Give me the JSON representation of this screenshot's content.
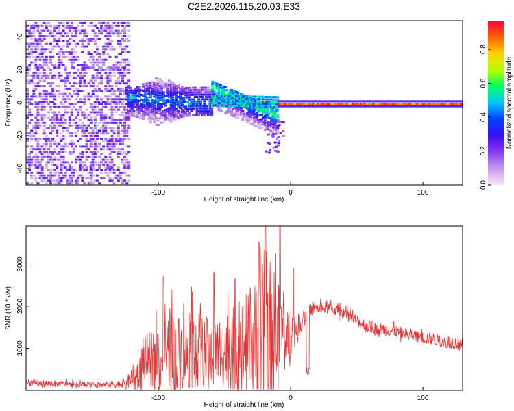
{
  "title": "C2E2.2026.115.20.03.E33",
  "chart_data": [
    {
      "type": "heatmap",
      "xlabel": "Height of straight line (km)",
      "ylabel": "Frequency (Hz)",
      "xlim": [
        -200,
        130
      ],
      "ylim": [
        -50,
        50
      ],
      "xticks": [
        -100,
        0,
        100
      ],
      "xtick_labels": [
        "-100",
        "0",
        "100"
      ],
      "yticks": [
        -40,
        -20,
        0,
        20,
        40
      ],
      "ytick_labels": [
        "-40",
        "-20",
        "0",
        "20",
        "40"
      ],
      "colorbar": {
        "label": "Normalized spectral amplitude",
        "range": [
          0,
          0.97
        ],
        "ticks": [
          0,
          0.2,
          0.4,
          0.6,
          0.8
        ],
        "tick_labels": [
          "0.0",
          "0.2",
          "0.4",
          "0.6",
          "0.8"
        ],
        "colormap": [
          "#f5e8fb",
          "#c39be8",
          "#8a3bf0",
          "#3a10f0",
          "#0040ff",
          "#00c8ff",
          "#00ff60",
          "#b8ff00",
          "#ffd000",
          "#ff6000",
          "#ff0040"
        ]
      },
      "description_regions": [
        {
          "name": "diffuse noise",
          "x_range": [
            -200,
            -125
          ],
          "freq_range": [
            -50,
            50
          ],
          "amplitude": 0.1
        },
        {
          "name": "broad band",
          "x_range": [
            -125,
            -60
          ],
          "freq_range": [
            -20,
            20
          ],
          "amplitude": 0.25
        },
        {
          "name": "decaying branch",
          "x_range": [
            -60,
            -10
          ],
          "freq_range": [
            -35,
            12
          ],
          "amplitude": 0.4
        },
        {
          "name": "narrow line at 0 Hz",
          "x_range": [
            -10,
            130
          ],
          "freq_range": [
            -3,
            3
          ],
          "amplitude": 0.97
        }
      ]
    },
    {
      "type": "line",
      "xlabel": "Height of straight line (km)",
      "ylabel": "SNR (10 * v/v)",
      "xlim": [
        -200,
        130
      ],
      "ylim": [
        0,
        3900
      ],
      "xticks": [
        -100,
        0,
        100
      ],
      "xtick_labels": [
        "-100",
        "0",
        "100"
      ],
      "yticks": [
        1000,
        2000,
        3000
      ],
      "ytick_labels": [
        "1000",
        "2000",
        "3000"
      ],
      "color": "#ee3333",
      "envelope": {
        "x": [
          -200,
          -180,
          -160,
          -140,
          -125,
          -120,
          -115,
          -110,
          -100,
          -90,
          -80,
          -70,
          -60,
          -50,
          -45,
          -40,
          -30,
          -25,
          -20,
          -15,
          -10,
          -5,
          0,
          5,
          10,
          15,
          20,
          30,
          40,
          50,
          60,
          70,
          80,
          90,
          100,
          110,
          120,
          130
        ],
        "base": [
          180,
          160,
          150,
          140,
          150,
          250,
          500,
          700,
          800,
          850,
          900,
          950,
          900,
          950,
          1000,
          1000,
          1100,
          1150,
          1200,
          1250,
          1300,
          1350,
          1400,
          1500,
          1750,
          1900,
          1950,
          1950,
          1850,
          1650,
          1500,
          1450,
          1400,
          1300,
          1250,
          1200,
          1150,
          1100
        ],
        "amp": [
          80,
          80,
          70,
          70,
          120,
          300,
          450,
          600,
          800,
          1000,
          900,
          900,
          800,
          900,
          1000,
          1100,
          1300,
          1600,
          2200,
          1800,
          1400,
          1000,
          600,
          300,
          200,
          150,
          150,
          150,
          150,
          150,
          150,
          150,
          150,
          150,
          150,
          150,
          150,
          150
        ]
      },
      "peaks": [
        {
          "x": -96,
          "y": 2700
        },
        {
          "x": -75,
          "y": 2450
        },
        {
          "x": -58,
          "y": 2800
        },
        {
          "x": -42,
          "y": 2650
        },
        {
          "x": -24,
          "y": 3500
        },
        {
          "x": -19,
          "y": 3900
        },
        {
          "x": -8,
          "y": 3900
        },
        {
          "x": 2,
          "y": 2900
        }
      ],
      "dip": {
        "x": 13,
        "y": 350
      }
    }
  ]
}
